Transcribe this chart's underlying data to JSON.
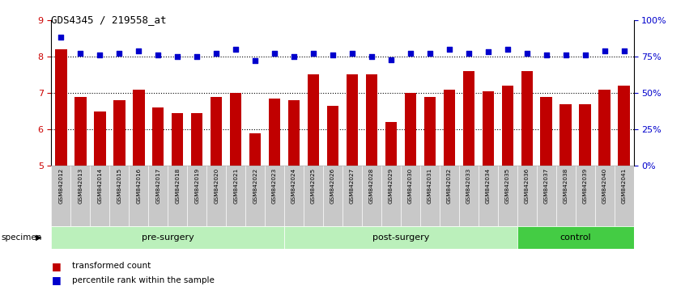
{
  "title": "GDS4345 / 219558_at",
  "samples": [
    "GSM842012",
    "GSM842013",
    "GSM842014",
    "GSM842015",
    "GSM842016",
    "GSM842017",
    "GSM842018",
    "GSM842019",
    "GSM842020",
    "GSM842021",
    "GSM842022",
    "GSM842023",
    "GSM842024",
    "GSM842025",
    "GSM842026",
    "GSM842027",
    "GSM842028",
    "GSM842029",
    "GSM842030",
    "GSM842031",
    "GSM842032",
    "GSM842033",
    "GSM842034",
    "GSM842035",
    "GSM842036",
    "GSM842037",
    "GSM842038",
    "GSM842039",
    "GSM842040",
    "GSM842041"
  ],
  "bar_values": [
    8.2,
    6.9,
    6.5,
    6.8,
    7.1,
    6.6,
    6.45,
    6.45,
    6.9,
    7.0,
    5.9,
    6.85,
    6.8,
    7.5,
    6.65,
    7.5,
    7.5,
    6.2,
    7.0,
    6.9,
    7.1,
    7.6,
    7.05,
    7.2,
    7.6,
    6.9,
    6.7,
    6.7,
    7.1,
    7.2
  ],
  "percentile_values": [
    88,
    77,
    76,
    77,
    79,
    76,
    75,
    75,
    77,
    80,
    72,
    77,
    75,
    77,
    76,
    77,
    75,
    73,
    77,
    77,
    80,
    77,
    78,
    80,
    77,
    76,
    76,
    76,
    79,
    79
  ],
  "bar_color": "#c00000",
  "percentile_color": "#0000cc",
  "ylim_left": [
    5,
    9
  ],
  "ylim_right": [
    0,
    100
  ],
  "yticks_left": [
    5,
    6,
    7,
    8,
    9
  ],
  "yticks_right": [
    0,
    25,
    50,
    75,
    100
  ],
  "ytick_labels_right": [
    "0%",
    "25%",
    "50%",
    "75%",
    "100%"
  ],
  "group_borders": [
    {
      "start": 0,
      "end": 12,
      "label": "pre-surgery",
      "color": "#bbf0bb"
    },
    {
      "start": 12,
      "end": 24,
      "label": "post-surgery",
      "color": "#bbf0bb"
    },
    {
      "start": 24,
      "end": 30,
      "label": "control",
      "color": "#44cc44"
    }
  ],
  "legend_bar_label": "transformed count",
  "legend_pct_label": "percentile rank within the sample",
  "specimen_label": "specimen",
  "dotted_lines": [
    6,
    7,
    8
  ]
}
